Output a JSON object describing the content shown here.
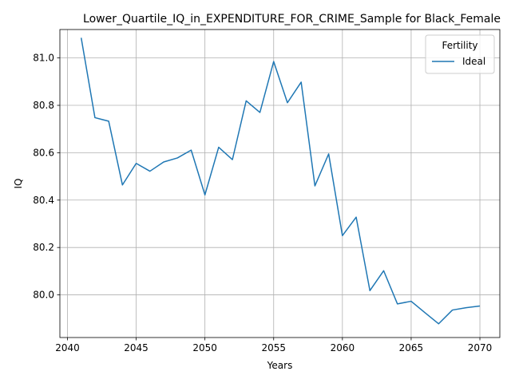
{
  "chart_data": {
    "type": "line",
    "title": "Lower_Quartile_IQ_in_EXPENDITURE_FOR_CRIME_Sample for Black_Female",
    "xlabel": "Years",
    "ylabel": "IQ",
    "xlim": [
      2039.45,
      2071.45
    ],
    "ylim": [
      79.82,
      81.12
    ],
    "xticks": [
      2040,
      2045,
      2050,
      2055,
      2060,
      2065,
      2070
    ],
    "yticks": [
      80.0,
      80.2,
      80.4,
      80.6,
      80.8,
      81.0
    ],
    "grid": true,
    "legend": {
      "title": "Fertility",
      "position": "top-right"
    },
    "x": [
      2041,
      2042,
      2043,
      2044,
      2045,
      2046,
      2047,
      2048,
      2049,
      2050,
      2051,
      2052,
      2053,
      2054,
      2055,
      2056,
      2057,
      2058,
      2059,
      2060,
      2061,
      2062,
      2063,
      2064,
      2065,
      2066,
      2067,
      2068,
      2069,
      2070
    ],
    "series": [
      {
        "name": "Ideal",
        "color": "#1f77b4",
        "values": [
          81.085,
          80.748,
          80.733,
          80.464,
          80.555,
          80.522,
          80.561,
          80.578,
          80.611,
          80.422,
          80.623,
          80.571,
          80.819,
          80.77,
          80.985,
          80.811,
          80.898,
          80.46,
          80.595,
          80.25,
          80.328,
          80.018,
          80.102,
          79.962,
          79.973,
          79.925,
          79.878,
          79.936,
          79.946,
          79.953
        ]
      }
    ]
  }
}
